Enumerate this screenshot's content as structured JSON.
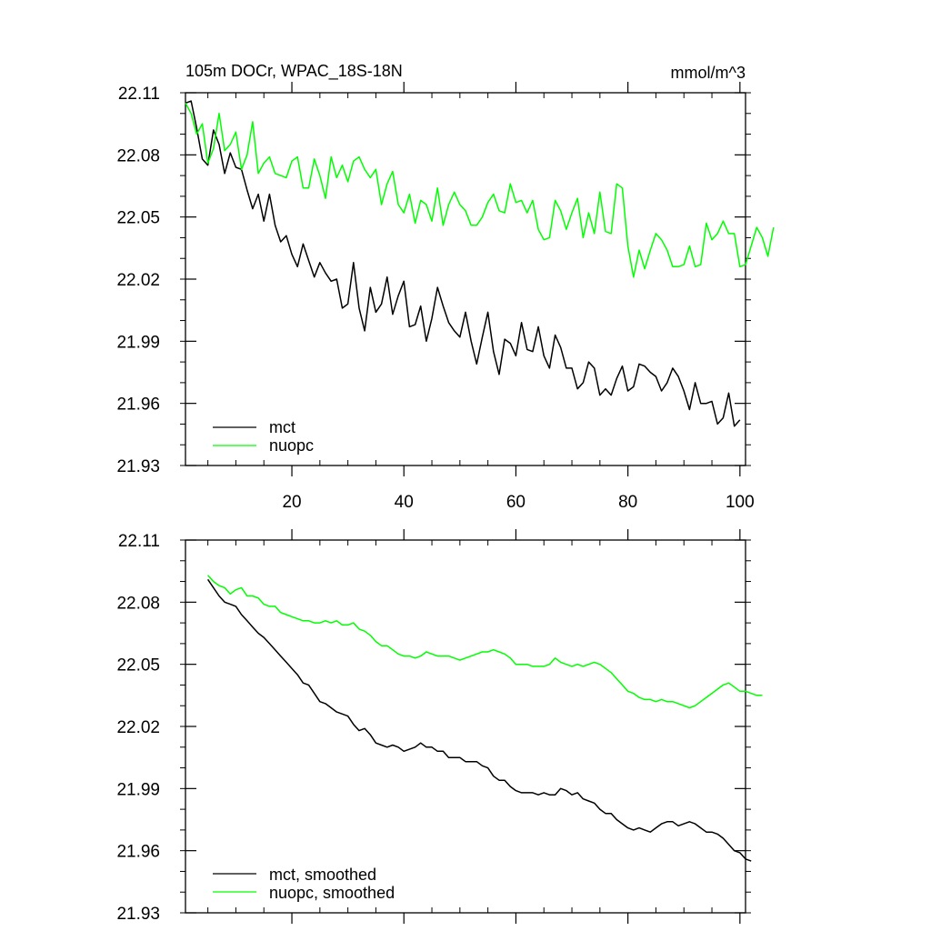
{
  "chart_data": [
    {
      "type": "line",
      "title": "105m DOCr, WPAC_18S-18N",
      "units": "mmol/m^3",
      "xlim": [
        1,
        101
      ],
      "ylim": [
        21.93,
        22.11
      ],
      "x_ticks": [
        20,
        40,
        60,
        80,
        100
      ],
      "x_tick_labels": [
        "20",
        "40",
        "60",
        "80",
        "100"
      ],
      "y_ticks": [
        22.11,
        22.08,
        22.05,
        22.02,
        21.99,
        21.96,
        21.93
      ],
      "y_tick_labels": [
        "22.11",
        "22.08",
        "22.05",
        "22.02",
        "21.99",
        "21.96",
        "21.93"
      ],
      "legend_position": "bottom-left",
      "series": [
        {
          "name": "mct",
          "color": "#000000",
          "x_start": 1,
          "values": [
            22.105,
            22.106,
            22.093,
            22.078,
            22.075,
            22.092,
            22.085,
            22.071,
            22.081,
            22.074,
            22.073,
            22.063,
            22.054,
            22.061,
            22.048,
            22.061,
            22.046,
            22.038,
            22.041,
            22.032,
            22.026,
            22.037,
            22.029,
            22.021,
            22.028,
            22.023,
            22.019,
            22.02,
            22.006,
            22.008,
            22.028,
            22.006,
            21.995,
            22.016,
            22.004,
            22.008,
            22.021,
            22.003,
            22.012,
            22.019,
            21.997,
            21.998,
            22.007,
            21.99,
            22.001,
            22.016,
            22.007,
            21.999,
            21.995,
            21.992,
            22.004,
            21.99,
            21.979,
            21.992,
            22.004,
            21.985,
            21.974,
            21.991,
            21.989,
            21.983,
            21.999,
            21.986,
            21.985,
            21.997,
            21.983,
            21.977,
            21.993,
            21.987,
            21.977,
            21.977,
            21.967,
            21.97,
            21.98,
            21.977,
            21.964,
            21.967,
            21.964,
            21.972,
            21.978,
            21.966,
            21.968,
            21.979,
            21.978,
            21.975,
            21.973,
            21.966,
            21.97,
            21.977,
            21.973,
            21.966,
            21.957,
            21.97,
            21.96,
            21.96,
            21.961,
            21.95,
            21.953,
            21.965,
            21.949,
            21.952
          ]
        },
        {
          "name": "nuopc",
          "color": "#00ff00",
          "x_start": 1,
          "values": [
            22.105,
            22.1,
            22.09,
            22.095,
            22.076,
            22.083,
            22.1,
            22.082,
            22.085,
            22.091,
            22.073,
            22.08,
            22.096,
            22.071,
            22.076,
            22.079,
            22.071,
            22.07,
            22.069,
            22.077,
            22.079,
            22.064,
            22.064,
            22.078,
            22.07,
            22.059,
            22.079,
            22.069,
            22.075,
            22.067,
            22.077,
            22.079,
            22.073,
            22.069,
            22.073,
            22.056,
            22.066,
            22.072,
            22.056,
            22.052,
            22.061,
            22.047,
            22.058,
            22.056,
            22.048,
            22.064,
            22.046,
            22.056,
            22.062,
            22.056,
            22.053,
            22.046,
            22.046,
            22.05,
            22.057,
            22.061,
            22.053,
            22.052,
            22.066,
            22.057,
            22.058,
            22.052,
            22.058,
            22.044,
            22.039,
            22.04,
            22.058,
            22.053,
            22.044,
            22.052,
            22.059,
            22.04,
            22.052,
            22.042,
            22.062,
            22.043,
            22.042,
            22.066,
            22.064,
            22.036,
            22.021,
            22.034,
            22.025,
            22.034,
            22.042,
            22.039,
            22.034,
            22.026,
            22.026,
            22.027,
            22.036,
            22.026,
            22.027,
            22.047,
            22.039,
            22.042,
            22.048,
            22.042,
            22.042,
            22.026,
            22.027,
            22.036,
            22.045,
            22.04,
            22.031,
            22.045
          ]
        }
      ]
    },
    {
      "type": "line",
      "title": "",
      "units": "",
      "xlim": [
        1,
        101
      ],
      "ylim": [
        21.93,
        22.11
      ],
      "x_ticks": [
        20,
        40,
        60,
        80,
        100
      ],
      "y_ticks": [
        22.11,
        22.08,
        22.05,
        22.02,
        21.99,
        21.96,
        21.93
      ],
      "y_tick_labels": [
        "22.11",
        "22.08",
        "22.05",
        "22.02",
        "21.99",
        "21.96",
        "21.93"
      ],
      "legend_position": "bottom-left",
      "series": [
        {
          "name": "mct, smoothed",
          "color": "#000000",
          "x_start": 5,
          "values": [
            22.091,
            22.087,
            22.083,
            22.08,
            22.079,
            22.078,
            22.074,
            22.071,
            22.068,
            22.065,
            22.063,
            22.06,
            22.057,
            22.054,
            22.051,
            22.048,
            22.045,
            22.041,
            22.04,
            22.036,
            22.032,
            22.031,
            22.029,
            22.027,
            22.026,
            22.025,
            22.021,
            22.018,
            22.019,
            22.016,
            22.012,
            22.011,
            22.01,
            22.011,
            22.01,
            22.008,
            22.009,
            22.01,
            22.012,
            22.01,
            22.01,
            22.008,
            22.008,
            22.005,
            22.005,
            22.005,
            22.003,
            22.003,
            22.003,
            22.001,
            22.0,
            21.996,
            21.994,
            21.994,
            21.991,
            21.989,
            21.988,
            21.988,
            21.988,
            21.987,
            21.988,
            21.987,
            21.987,
            21.99,
            21.989,
            21.987,
            21.988,
            21.985,
            21.984,
            21.983,
            21.98,
            21.978,
            21.978,
            21.975,
            21.973,
            21.971,
            21.97,
            21.971,
            21.97,
            21.969,
            21.971,
            21.973,
            21.974,
            21.974,
            21.972,
            21.973,
            21.974,
            21.973,
            21.971,
            21.969,
            21.969,
            21.968,
            21.966,
            21.963,
            21.96,
            21.959,
            21.956,
            21.955
          ]
        },
        {
          "name": "nuopc, smoothed",
          "color": "#00ff00",
          "x_start": 5,
          "values": [
            22.093,
            22.09,
            22.088,
            22.087,
            22.084,
            22.086,
            22.087,
            22.083,
            22.083,
            22.082,
            22.079,
            22.078,
            22.078,
            22.075,
            22.074,
            22.073,
            22.072,
            22.071,
            22.071,
            22.07,
            22.07,
            22.071,
            22.07,
            22.071,
            22.069,
            22.069,
            22.07,
            22.067,
            22.066,
            22.064,
            22.061,
            22.059,
            22.059,
            22.057,
            22.055,
            22.054,
            22.054,
            22.053,
            22.054,
            22.056,
            22.055,
            22.054,
            22.054,
            22.054,
            22.053,
            22.052,
            22.053,
            22.054,
            22.055,
            22.056,
            22.056,
            22.057,
            22.056,
            22.055,
            22.053,
            22.05,
            22.05,
            22.05,
            22.049,
            22.049,
            22.049,
            22.05,
            22.053,
            22.051,
            22.05,
            22.049,
            22.05,
            22.049,
            22.05,
            22.051,
            22.05,
            22.048,
            22.046,
            22.043,
            22.04,
            22.037,
            22.036,
            22.034,
            22.033,
            22.033,
            22.032,
            22.033,
            22.032,
            22.032,
            22.031,
            22.03,
            22.029,
            22.03,
            22.032,
            22.034,
            22.036,
            22.038,
            22.04,
            22.041,
            22.039,
            22.037,
            22.037,
            22.036,
            22.035,
            22.035
          ]
        }
      ]
    }
  ]
}
